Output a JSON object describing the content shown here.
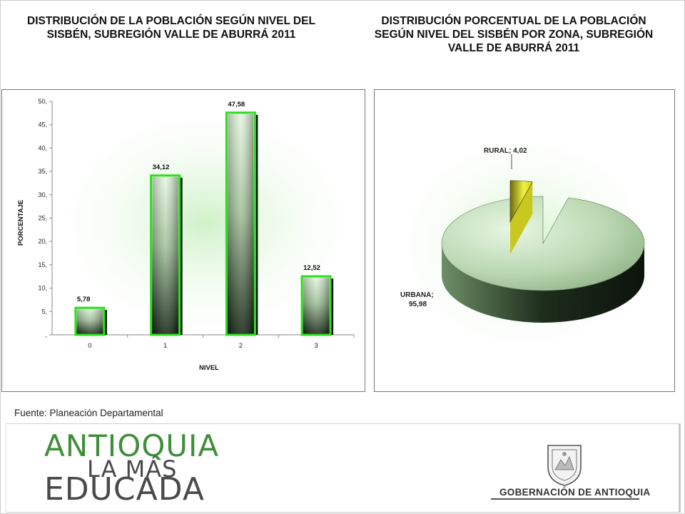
{
  "left_title": "DISTRIBUCIÓN DE LA POBLACIÓN SEGÚN NIVEL DEL SISBÉN, SUBREGIÓN VALLE DE ABURRÁ 2011",
  "right_title": "DISTRIBUCIÓN  PORCENTUAL DE LA POBLACIÓN SEGÚN NIVEL DEL SISBÉN POR ZONA, SUBREGIÓN VALLE DE ABURRÁ 2011",
  "source": "Fuente: Planeación Departamental",
  "logo": {
    "line1": "ANTIOQUIA",
    "line2": "LA MÁS",
    "line3": "EDUCADA",
    "gob": "GOBERNACIÓN DE ANTIOQUIA"
  },
  "colors": {
    "bar_border": "#2be01c",
    "bar_dark": "#0f1f0f",
    "bar_light": "#dff5d8",
    "glow": "#c9f0c2",
    "pie_rural": "#e8e82a",
    "pie_urbana": "#cfe9c9",
    "logo_green": "#3f8f3a"
  },
  "chart_data": [
    {
      "type": "bar",
      "xlabel": "NIVEL",
      "ylabel": "PORCENTAJE",
      "categories": [
        "0",
        "1",
        "2",
        "3"
      ],
      "values": [
        5.78,
        34.12,
        47.58,
        12.52
      ],
      "value_labels": [
        "5,78",
        "34,12",
        "47,58",
        "12,52"
      ],
      "ylim": [
        0,
        50
      ],
      "yticks": [
        0,
        5,
        10,
        15,
        20,
        25,
        30,
        35,
        40,
        45,
        50
      ],
      "ytick_labels": [
        ",",
        "5,",
        "10,",
        "15,",
        "20,",
        "25,",
        "30,",
        "35,",
        "40,",
        "45,",
        "50,"
      ],
      "grid": false
    },
    {
      "type": "pie",
      "slices": [
        {
          "label": "RURAL; 4,02",
          "value": 4.02
        },
        {
          "label": "URBANA;",
          "value_text": "95,98",
          "value": 95.98
        }
      ]
    }
  ]
}
